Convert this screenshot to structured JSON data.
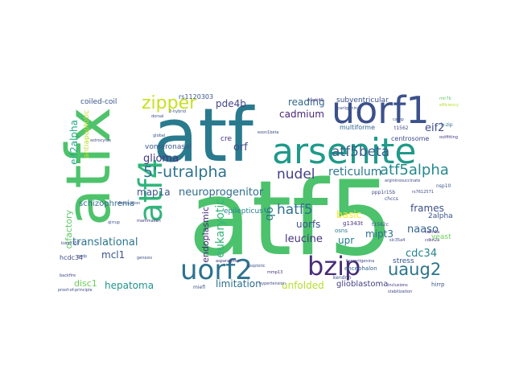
{
  "cloud": {
    "words": [
      {
        "text": "atf5",
        "color": "#4cc26c",
        "vertical": false
      },
      {
        "text": "atf",
        "color": "#2a7a8e",
        "vertical": false
      },
      {
        "text": "atfx",
        "color": "#4ec36b",
        "vertical": true
      },
      {
        "text": "uorf1",
        "color": "#3b518b",
        "vertical": false
      },
      {
        "text": "arsenite",
        "color": "#1f9a8a",
        "vertical": false
      },
      {
        "text": "atf4",
        "color": "#31b57b",
        "vertical": true
      },
      {
        "text": "uorf2",
        "color": "#2c728e",
        "vertical": false
      },
      {
        "text": "bzip",
        "color": "#472c7a",
        "vertical": false
      },
      {
        "text": "zipper",
        "color": "#c8e020",
        "vertical": false
      },
      {
        "text": "5'-utralpha",
        "color": "#2c728e",
        "vertical": false
      },
      {
        "text": "atf5beta",
        "color": "#375b8d",
        "vertical": false
      },
      {
        "text": "atf5alpha",
        "color": "#23898e",
        "vertical": false
      },
      {
        "text": "uaug2",
        "color": "#2b748e",
        "vertical": false
      },
      {
        "text": "hatf5",
        "color": "#2e6f8e",
        "vertical": false
      },
      {
        "text": "nudel",
        "color": "#424086",
        "vertical": false
      },
      {
        "text": "reticulum",
        "color": "#2a788e",
        "vertical": false
      },
      {
        "text": "eukaryotic",
        "color": "#35b779",
        "vertical": true
      },
      {
        "text": "neuroprogenitor",
        "color": "#2f6c8e",
        "vertical": false
      },
      {
        "text": "glioma",
        "color": "#443983",
        "vertical": false
      },
      {
        "text": "map1a",
        "color": "#3a548c",
        "vertical": false
      },
      {
        "text": "pde4b",
        "color": "#414487",
        "vertical": false
      },
      {
        "text": "cadmium",
        "color": "#482677",
        "vertical": false
      },
      {
        "text": "reading",
        "color": "#31688e",
        "vertical": false
      },
      {
        "text": "eif2alpha",
        "color": "#22a884",
        "vertical": true
      },
      {
        "text": "eif2",
        "color": "#3e4989",
        "vertical": false
      },
      {
        "text": "cdc34",
        "color": "#26828e",
        "vertical": false
      },
      {
        "text": "leucine",
        "color": "#46337e",
        "vertical": false
      },
      {
        "text": "translational",
        "color": "#2c738e",
        "vertical": false
      },
      {
        "text": "uorfs",
        "color": "#3b528b",
        "vertical": false
      },
      {
        "text": "hepatoma",
        "color": "#1f948c",
        "vertical": false
      },
      {
        "text": "limitation",
        "color": "#2d708e",
        "vertical": false
      },
      {
        "text": "unfolded",
        "color": "#b5de2b",
        "vertical": false
      },
      {
        "text": "glioblastoma",
        "color": "#433e85",
        "vertical": false
      },
      {
        "text": "frames",
        "color": "#3d4d8a",
        "vertical": false
      },
      {
        "text": "naaso",
        "color": "#33638d",
        "vertical": false
      },
      {
        "text": "mipt3",
        "color": "#2e6e8e",
        "vertical": false
      },
      {
        "text": "basic",
        "color": "#fde725",
        "vertical": false
      },
      {
        "text": "upr",
        "color": "#287c8e",
        "vertical": false
      },
      {
        "text": "schizophrenia",
        "color": "#2e6e8e",
        "vertical": false
      },
      {
        "text": "vomeronasal",
        "color": "#38598c",
        "vertical": false
      },
      {
        "text": "olfactory",
        "color": "#5ec962",
        "vertical": true
      },
      {
        "text": "mcl1",
        "color": "#3b528b",
        "vertical": false
      },
      {
        "text": "disc1",
        "color": "#6ece58",
        "vertical": false
      },
      {
        "text": "endoplasmic",
        "color": "#472d7b",
        "vertical": true
      },
      {
        "text": "epilepticus",
        "color": "#25848e",
        "vertical": false
      },
      {
        "text": "coiled-coil",
        "color": "#3b528b",
        "vertical": false
      },
      {
        "text": "subventricular",
        "color": "#3b528b",
        "vertical": false
      },
      {
        "text": "centrosome",
        "color": "#3e4a89",
        "vertical": false
      },
      {
        "text": "multiforme",
        "color": "#31688e",
        "vertical": false
      },
      {
        "text": "stress",
        "color": "#39568c",
        "vertical": false
      },
      {
        "text": "yeast",
        "color": "#6ece58",
        "vertical": false
      },
      {
        "text": "2alpha",
        "color": "#3b528b",
        "vertical": false
      },
      {
        "text": "orf",
        "color": "#3e4c8a",
        "vertical": false
      },
      {
        "text": "cre",
        "color": "#46307e",
        "vertical": false
      },
      {
        "text": "rs1120303",
        "color": "#3b528b",
        "vertical": false
      },
      {
        "text": "antiapoptotic",
        "color": "#b8de29",
        "vertical": true
      },
      {
        "text": "hcdc34",
        "color": "#3e4a89",
        "vertical": false
      },
      {
        "text": "encephalon",
        "color": "#33638d",
        "vertical": false
      },
      {
        "text": "hirrp",
        "color": "#3b528b",
        "vertical": false
      },
      {
        "text": "g1343t",
        "color": "#46337e",
        "vertical": false
      },
      {
        "text": "osns",
        "color": "#287d8e",
        "vertical": false
      },
      {
        "text": "kendrin",
        "color": "#3e4a89",
        "vertical": false
      },
      {
        "text": "nsp10",
        "color": "#3b528b",
        "vertical": false
      },
      {
        "text": "chccs",
        "color": "#3e4c8a",
        "vertical": false
      },
      {
        "text": "ppp1r15b",
        "color": "#3e4a89",
        "vertical": false
      },
      {
        "text": "t1562c",
        "color": "#3b528b",
        "vertical": false
      },
      {
        "text": "icariigenina",
        "color": "#3e4a89",
        "vertical": false
      },
      {
        "text": "merit40",
        "color": "#472d7b",
        "vertical": false
      },
      {
        "text": "exon1beta",
        "color": "#3e4a89",
        "vertical": false
      },
      {
        "text": "t1562",
        "color": "#3e4a89",
        "vertical": false
      },
      {
        "text": "camp",
        "color": "#3b528b",
        "vertical": false
      },
      {
        "text": "b-zip",
        "color": "#2c738e",
        "vertical": false
      },
      {
        "text": "mir7b",
        "color": "#5ec962",
        "vertical": false
      },
      {
        "text": "efficiency",
        "color": "#b5de2b",
        "vertical": false
      },
      {
        "text": "argininosuccinate",
        "color": "#3e4a89",
        "vertical": false
      },
      {
        "text": "cdkn1a",
        "color": "#46337e",
        "vertical": false
      },
      {
        "text": "deprivation",
        "color": "#3b528b",
        "vertical": false
      },
      {
        "text": "kiaa0157",
        "color": "#3e4a89",
        "vertical": false
      },
      {
        "text": "miefl",
        "color": "#3b528b",
        "vertical": false
      },
      {
        "text": "rs7612571",
        "color": "#3e4a89",
        "vertical": false
      },
      {
        "text": "cdkn2a",
        "color": "#46337e",
        "vertical": false
      },
      {
        "text": "slc35a4",
        "color": "#3e4a89",
        "vertical": false
      },
      {
        "text": "fuzzeriigenina",
        "color": "#3e4a89",
        "vertical": false
      },
      {
        "text": "mmp13",
        "color": "#472d7b",
        "vertical": false
      },
      {
        "text": "gsdp",
        "color": "#3b528b",
        "vertical": false
      },
      {
        "text": "hypertension",
        "color": "#3e4a89",
        "vertical": false
      },
      {
        "text": "2-hybrid",
        "color": "#3b528b",
        "vertical": false
      },
      {
        "text": "proof-of-principle",
        "color": "#3e4a89",
        "vertical": false
      },
      {
        "text": "asparagine",
        "color": "#46337e",
        "vertical": false
      },
      {
        "text": "apoptotic",
        "color": "#3b528b",
        "vertical": false
      },
      {
        "text": "stabilization",
        "color": "#3e4a89",
        "vertical": false
      },
      {
        "text": "inclusions",
        "color": "#46337e",
        "vertical": false
      },
      {
        "text": "genesis",
        "color": "#3b528b",
        "vertical": false
      },
      {
        "text": "astrocytes",
        "color": "#3e4a89",
        "vertical": false
      },
      {
        "text": "mammalian",
        "color": "#46337e",
        "vertical": false
      },
      {
        "text": "qirrup",
        "color": "#3b528b",
        "vertical": false
      },
      {
        "text": "backfire",
        "color": "#3e4a89",
        "vertical": false
      },
      {
        "text": "global",
        "color": "#3b528b",
        "vertical": false
      },
      {
        "text": "dorsal",
        "color": "#3e4a89",
        "vertical": false
      },
      {
        "text": "outfitting",
        "color": "#46337e",
        "vertical": false
      },
      {
        "text": "q6",
        "color": "#2a788e",
        "vertical": false
      }
    ]
  }
}
